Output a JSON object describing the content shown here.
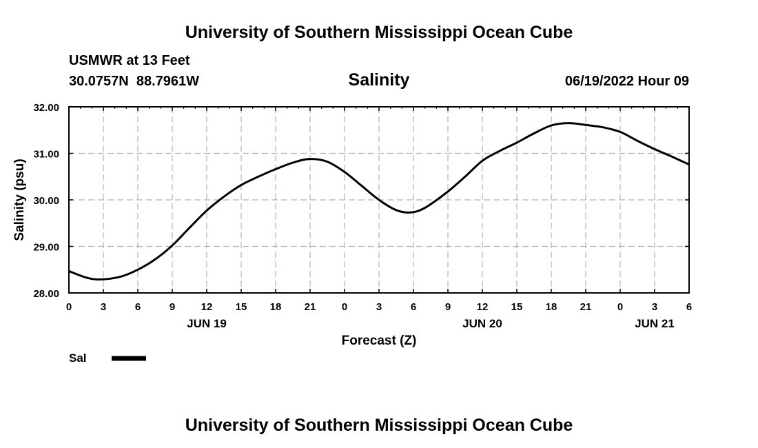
{
  "header": {
    "title_top": "University of Southern Mississippi Ocean Cube",
    "station": "USMWR at 13 Feet",
    "coords": "30.0757N  88.7961W",
    "chart_title": "Salinity",
    "datetime": "06/19/2022 Hour 09",
    "title_bottom": "University of Southern Mississippi Ocean Cube"
  },
  "legend": {
    "label": "Sal",
    "color": "#000000"
  },
  "chart_data": {
    "type": "line",
    "title": "Salinity",
    "xlabel": "Forecast (Z)",
    "ylabel": "Salinity (psu)",
    "xlim": [
      0,
      54
    ],
    "ylim": [
      28.0,
      32.0
    ],
    "grid": true,
    "y_ticks": [
      "28.00",
      "29.00",
      "30.00",
      "31.00",
      "32.00"
    ],
    "y_tick_values": [
      28,
      29,
      30,
      31,
      32
    ],
    "x_ticks": [
      "0",
      "3",
      "6",
      "9",
      "12",
      "15",
      "18",
      "21",
      "0",
      "3",
      "6",
      "9",
      "12",
      "15",
      "18",
      "21",
      "0",
      "3",
      "6"
    ],
    "x_tick_hours": [
      0,
      3,
      6,
      9,
      12,
      15,
      18,
      21,
      24,
      27,
      30,
      33,
      36,
      39,
      42,
      45,
      48,
      51,
      54
    ],
    "date_labels": [
      {
        "label": "JUN 19",
        "hour": 12
      },
      {
        "label": "JUN 20",
        "hour": 36
      },
      {
        "label": "JUN 21",
        "hour": 51
      }
    ],
    "series": [
      {
        "name": "Sal",
        "x": [
          0,
          1.5,
          2.75,
          4.5,
          6,
          7.5,
          9,
          10.5,
          12,
          13.5,
          15,
          16.5,
          18,
          19.5,
          21,
          22.5,
          24,
          25.5,
          27,
          28.5,
          29.75,
          31,
          33,
          34.5,
          36,
          37.5,
          39,
          40.5,
          42,
          43.5,
          45,
          46.5,
          48,
          49.5,
          51,
          52.5,
          54
        ],
        "y": [
          28.47,
          28.33,
          28.29,
          28.35,
          28.5,
          28.72,
          29.02,
          29.4,
          29.77,
          30.07,
          30.32,
          30.5,
          30.66,
          30.8,
          30.88,
          30.82,
          30.6,
          30.3,
          30.0,
          29.78,
          29.73,
          29.83,
          30.18,
          30.5,
          30.84,
          31.05,
          31.23,
          31.43,
          31.6,
          31.65,
          31.61,
          31.56,
          31.46,
          31.27,
          31.09,
          30.93,
          30.76
        ]
      }
    ]
  }
}
